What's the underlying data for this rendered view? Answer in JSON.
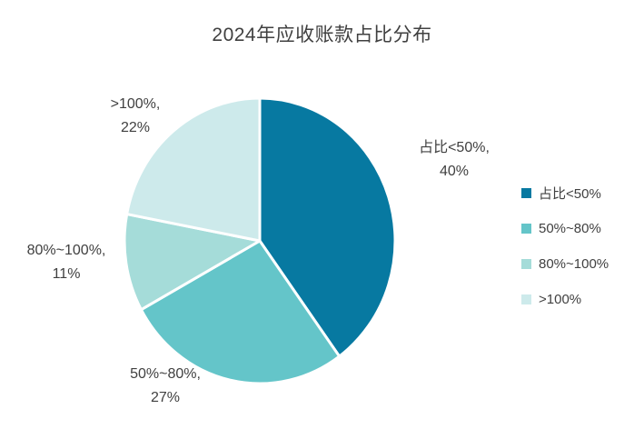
{
  "title": "2024年应收账款占比分布",
  "chart_data": {
    "type": "pie",
    "title": "2024年应收账款占比分布",
    "start_angle_deg": 0,
    "direction": "clockwise",
    "legend_position": "right",
    "slice_separator_color": "#ffffff",
    "slices": [
      {
        "label": "占比<50%",
        "value": 40,
        "color": "#0779A1",
        "callout_line1": "占比<50%,",
        "callout_line2": "40%"
      },
      {
        "label": "50%~80%",
        "value": 27,
        "color": "#64C5C9",
        "callout_line1": "50%~80%,",
        "callout_line2": "27%"
      },
      {
        "label": "80%~100%",
        "value": 11,
        "color": "#A5DCD9",
        "callout_line1": "80%~100%,",
        "callout_line2": "11%"
      },
      {
        "label": ">100%",
        "value": 22,
        "color": "#CDEAEB",
        "callout_line1": ">100%,",
        "callout_line2": "22%"
      }
    ]
  }
}
